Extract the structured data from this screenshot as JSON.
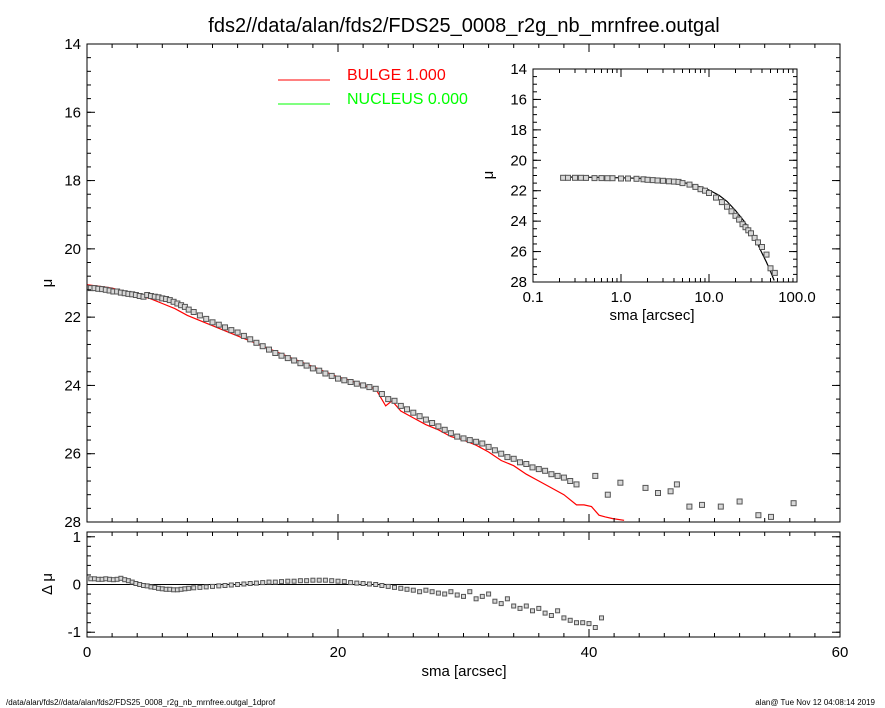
{
  "figure": {
    "title": "fds2//data/alan/fds2/FDS25_0008_r2g_nb_mrnfree.outgal",
    "footer_left": "/data/alan/fds2//data/alan/fds2/FDS25_0008_r2g_nb_mrnfree.outgal_1dprof",
    "footer_right": "alan@  Tue Nov 12 04:08:14 2019"
  },
  "chart_data": [
    {
      "id": "main",
      "type": "scatter",
      "xlabel": "sma [arcsec]",
      "ylabel": "μ",
      "xlim": [
        0,
        60
      ],
      "ylim": [
        28,
        14
      ],
      "y_inverted": true,
      "x_ticks": [
        "0",
        "20",
        "40",
        "60"
      ],
      "y_ticks": [
        "14",
        "16",
        "18",
        "20",
        "22",
        "24",
        "26",
        "28"
      ],
      "legend": [
        {
          "label": "BULGE  1.000",
          "color": "#ff0000"
        },
        {
          "label": "NUCLEUS  0.000",
          "color": "#00ff00"
        }
      ],
      "series": [
        {
          "name": "BULGE",
          "kind": "line",
          "color": "#ff0000",
          "x": [
            0,
            1,
            2,
            3,
            4,
            5,
            6,
            7,
            8,
            9,
            10,
            11,
            12,
            13,
            14,
            15,
            16,
            17,
            18,
            19,
            20,
            21,
            22,
            23,
            23.4,
            23.8,
            24.3,
            25,
            26,
            27,
            28,
            29,
            30,
            31,
            32,
            33,
            34,
            35,
            36,
            37,
            38,
            39,
            39.6,
            40.2,
            40.8,
            41.3,
            41.9,
            42.8
          ],
          "y": [
            21.05,
            21.1,
            21.15,
            21.25,
            21.35,
            21.45,
            21.6,
            21.75,
            21.95,
            22.1,
            22.25,
            22.4,
            22.55,
            22.7,
            22.85,
            23.0,
            23.15,
            23.3,
            23.45,
            23.6,
            23.75,
            23.85,
            24.0,
            24.1,
            24.35,
            24.6,
            24.45,
            24.75,
            24.95,
            25.15,
            25.3,
            25.5,
            25.6,
            25.75,
            25.95,
            26.2,
            26.35,
            26.6,
            26.8,
            27.0,
            27.2,
            27.5,
            27.5,
            27.55,
            27.8,
            27.85,
            27.9,
            27.95
          ]
        },
        {
          "name": "data",
          "kind": "points",
          "color": "#555555",
          "x": [
            0.3,
            0.6,
            0.9,
            1.2,
            1.5,
            1.8,
            2.1,
            2.4,
            2.7,
            3.0,
            3.3,
            3.6,
            3.9,
            4.2,
            4.5,
            4.8,
            5.1,
            5.4,
            5.7,
            6.0,
            6.3,
            6.6,
            6.9,
            7.2,
            7.5,
            7.8,
            8.1,
            8.5,
            9.0,
            9.5,
            10.0,
            10.5,
            11,
            11.5,
            12,
            12.5,
            13,
            13.5,
            14,
            14.5,
            15,
            15.5,
            16,
            16.5,
            17,
            17.5,
            18,
            18.5,
            19,
            19.5,
            20,
            20.5,
            21,
            21.5,
            22,
            22.5,
            23,
            23.5,
            24,
            24.5,
            25,
            25.5,
            26,
            26.5,
            27,
            27.5,
            28,
            28.5,
            29,
            29.5,
            30,
            30.5,
            31,
            31.5,
            32,
            32.5,
            33,
            33.5,
            34,
            34.5,
            35,
            35.5,
            36,
            36.5,
            37,
            37.5,
            38,
            38.5,
            39,
            40.5,
            41.5,
            42.5,
            44.5,
            45.5,
            46.5,
            47,
            48,
            49,
            50.5,
            52,
            53.5,
            54.5,
            56.3
          ],
          "y": [
            21.15,
            21.15,
            21.17,
            21.18,
            21.2,
            21.22,
            21.25,
            21.25,
            21.28,
            21.3,
            21.32,
            21.33,
            21.35,
            21.38,
            21.4,
            21.35,
            21.38,
            21.4,
            21.42,
            21.45,
            21.47,
            21.5,
            21.55,
            21.6,
            21.65,
            21.7,
            21.78,
            21.85,
            21.95,
            22.05,
            22.15,
            22.22,
            22.3,
            22.38,
            22.45,
            22.55,
            22.65,
            22.75,
            22.85,
            22.95,
            23.05,
            23.13,
            23.2,
            23.27,
            23.35,
            23.42,
            23.5,
            23.57,
            23.65,
            23.72,
            23.8,
            23.85,
            23.9,
            23.95,
            24.0,
            24.05,
            24.1,
            24.25,
            24.4,
            24.45,
            24.6,
            24.7,
            24.8,
            24.9,
            25.0,
            25.1,
            25.2,
            25.3,
            25.4,
            25.5,
            25.55,
            25.6,
            25.65,
            25.7,
            25.8,
            25.9,
            26.0,
            26.1,
            26.15,
            26.25,
            26.3,
            26.4,
            26.45,
            26.5,
            26.6,
            26.65,
            26.7,
            26.8,
            26.9,
            26.65,
            27.2,
            26.85,
            27.0,
            27.15,
            27.1,
            26.9,
            27.55,
            27.5,
            27.55,
            27.4,
            27.8,
            27.85,
            27.45
          ]
        }
      ]
    },
    {
      "id": "inset",
      "type": "scatter",
      "xlabel": "sma [arcsec]",
      "ylabel": "μ",
      "x_scale": "log",
      "xlim": [
        0.1,
        100
      ],
      "ylim": [
        28,
        14
      ],
      "y_inverted": true,
      "x_ticks": [
        "0.1",
        "1.0",
        "10.0",
        "100.0"
      ],
      "y_ticks": [
        "14",
        "16",
        "18",
        "20",
        "22",
        "24",
        "26",
        "28"
      ],
      "series": [
        {
          "name": "model",
          "kind": "line",
          "color": "#000000",
          "x": [
            0.22,
            0.5,
            1,
            2,
            3,
            4,
            5,
            6,
            8,
            10,
            13,
            16,
            20,
            25,
            30,
            35,
            40,
            45,
            50,
            55
          ],
          "y": [
            21.1,
            21.12,
            21.15,
            21.2,
            21.3,
            21.38,
            21.45,
            21.55,
            21.75,
            21.95,
            22.3,
            22.7,
            23.3,
            24.0,
            24.7,
            25.4,
            26.1,
            26.7,
            27.3,
            27.9
          ]
        },
        {
          "name": "data",
          "kind": "points",
          "color": "#555555",
          "x": [
            0.22,
            0.25,
            0.3,
            0.35,
            0.4,
            0.5,
            0.6,
            0.7,
            0.8,
            1.0,
            1.2,
            1.5,
            1.8,
            2.0,
            2.3,
            2.6,
            3.0,
            3.5,
            4.0,
            4.5,
            5,
            6,
            7,
            8,
            9,
            10,
            12,
            14,
            16,
            18,
            20,
            22,
            24,
            26,
            28,
            30,
            33,
            36,
            40,
            45,
            50,
            56
          ],
          "y": [
            21.15,
            21.15,
            21.15,
            21.15,
            21.16,
            21.17,
            21.17,
            21.18,
            21.18,
            21.2,
            21.2,
            21.22,
            21.25,
            21.28,
            21.3,
            21.33,
            21.35,
            21.38,
            21.4,
            21.42,
            21.5,
            21.6,
            21.75,
            21.9,
            22.0,
            22.15,
            22.45,
            22.75,
            23.05,
            23.35,
            23.65,
            23.9,
            24.2,
            24.4,
            24.6,
            24.8,
            25.1,
            25.4,
            25.7,
            26.2,
            27.1,
            27.4
          ]
        }
      ]
    },
    {
      "id": "residual",
      "type": "scatter",
      "xlabel": "sma [arcsec]",
      "ylabel": "Δ μ",
      "xlim": [
        0,
        60
      ],
      "ylim": [
        -1.1,
        1.1
      ],
      "y_ticks": [
        "1",
        "0",
        "-1"
      ],
      "reference_line": 0,
      "series": [
        {
          "name": "residual",
          "kind": "points",
          "color": "#555555",
          "x": [
            0.3,
            0.6,
            0.9,
            1.2,
            1.5,
            1.8,
            2.1,
            2.4,
            2.7,
            3.0,
            3.3,
            3.6,
            3.9,
            4.2,
            4.5,
            4.8,
            5.1,
            5.4,
            5.7,
            6.0,
            6.3,
            6.6,
            6.9,
            7.2,
            7.5,
            7.8,
            8.1,
            8.5,
            9,
            9.5,
            10,
            10.5,
            11,
            11.5,
            12,
            12.5,
            13,
            13.5,
            14,
            14.5,
            15,
            15.5,
            16,
            16.5,
            17,
            17.5,
            18,
            18.5,
            19,
            19.5,
            20,
            20.5,
            21,
            21.5,
            22,
            22.5,
            23,
            23.5,
            24,
            24.5,
            25,
            25.5,
            26,
            26.5,
            27,
            27.5,
            28,
            28.5,
            29,
            29.5,
            30,
            30.5,
            31,
            31.5,
            32,
            32.5,
            33,
            33.5,
            34,
            34.5,
            35,
            35.5,
            36,
            36.5,
            37,
            37.5,
            38,
            38.5,
            39,
            39.5,
            40,
            40.5,
            41
          ],
          "y": [
            0.12,
            0.12,
            0.11,
            0.11,
            0.12,
            0.11,
            0.1,
            0.11,
            0.13,
            0.1,
            0.08,
            0.05,
            0.02,
            0.0,
            -0.02,
            -0.03,
            -0.05,
            -0.06,
            -0.08,
            -0.09,
            -0.1,
            -0.1,
            -0.11,
            -0.11,
            -0.1,
            -0.09,
            -0.08,
            -0.07,
            -0.06,
            -0.05,
            -0.04,
            -0.03,
            -0.02,
            -0.01,
            0.0,
            0.01,
            0.02,
            0.03,
            0.04,
            0.05,
            0.05,
            0.06,
            0.07,
            0.07,
            0.08,
            0.08,
            0.09,
            0.09,
            0.09,
            0.08,
            0.07,
            0.06,
            0.04,
            0.03,
            0.02,
            0.01,
            0.0,
            -0.02,
            -0.04,
            -0.06,
            -0.08,
            -0.1,
            -0.12,
            -0.15,
            -0.12,
            -0.15,
            -0.18,
            -0.2,
            -0.15,
            -0.22,
            -0.25,
            -0.15,
            -0.3,
            -0.25,
            -0.2,
            -0.35,
            -0.4,
            -0.3,
            -0.45,
            -0.5,
            -0.45,
            -0.55,
            -0.5,
            -0.6,
            -0.65,
            -0.55,
            -0.7,
            -0.75,
            -0.8,
            -0.8,
            -0.82,
            -0.9,
            -0.7
          ]
        }
      ]
    }
  ]
}
